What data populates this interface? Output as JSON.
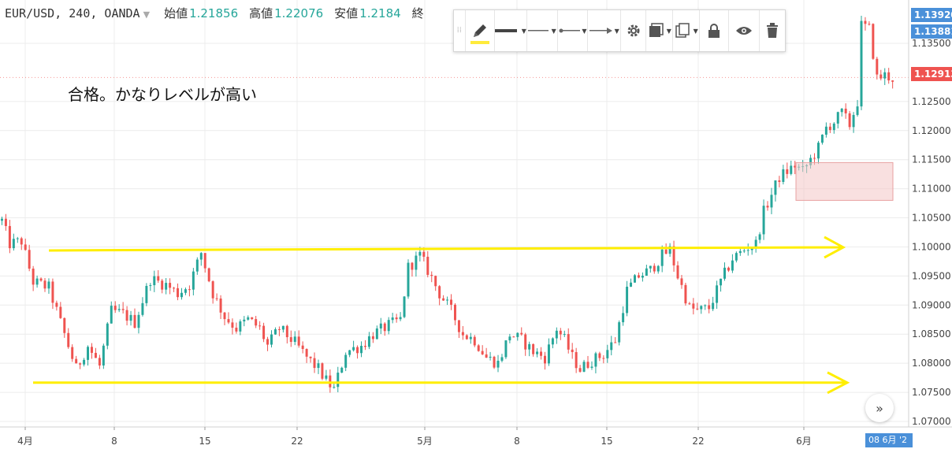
{
  "legend": {
    "symbol": "EUR/USD, 240, OANDA",
    "open_label": "始値",
    "open_value": "1.21856",
    "high_label": "高値",
    "high_value": "1.22076",
    "low_label": "安値",
    "low_value": "1.2184",
    "close_label": "終"
  },
  "annotation": "合格。かなりレベルが高い",
  "toolbar": {
    "items": [
      "drag-handle",
      "pencil-icon",
      "line-thickness-icon",
      "line-style-icon",
      "line-end-icon",
      "arrow-end-icon",
      "gear-icon",
      "fill-icon",
      "clone-icon",
      "lock-icon",
      "eye-icon",
      "trash-icon"
    ],
    "accent_color": "#ffeb3b"
  },
  "price_tags": {
    "top": "1.13920",
    "second": "1.13881",
    "current": "1.12913"
  },
  "time_tag": "08 6月 '2",
  "colors": {
    "up": "#26a69a",
    "down": "#ef5350",
    "hline": "#ffee00",
    "zone": "#f4c7c7",
    "current_tag": "#ef5350",
    "blue_tag": "#4a90d9"
  },
  "chart_data": {
    "type": "candlestick",
    "symbol": "EUR/USD",
    "timeframe": "240",
    "y_ticks": [
      "1.13500",
      "1.12500",
      "1.12000",
      "1.11500",
      "1.11000",
      "1.10500",
      "1.10000",
      "1.09500",
      "1.09000",
      "1.08500",
      "1.08000",
      "1.07500",
      "1.07000"
    ],
    "x_ticks": [
      "4月",
      "8",
      "15",
      "22",
      "5月",
      "8",
      "15",
      "22",
      "6月"
    ],
    "ylim": [
      1.069,
      1.1395
    ],
    "path": [
      [
        0,
        1.1045
      ],
      [
        2,
        1.1005
      ],
      [
        5,
        1.101
      ],
      [
        8,
        1.094
      ],
      [
        12,
        1.093
      ],
      [
        16,
        1.085
      ],
      [
        19,
        1.079
      ],
      [
        22,
        1.083
      ],
      [
        25,
        1.0795
      ],
      [
        28,
        1.089
      ],
      [
        31,
        1.0885
      ],
      [
        34,
        1.087
      ],
      [
        38,
        1.0945
      ],
      [
        42,
        1.0935
      ],
      [
        45,
        1.092
      ],
      [
        48,
        1.0935
      ],
      [
        51,
        1.099
      ],
      [
        54,
        1.092
      ],
      [
        57,
        1.088
      ],
      [
        60,
        1.086
      ],
      [
        63,
        1.0875
      ],
      [
        66,
        1.086
      ],
      [
        68,
        1.083
      ],
      [
        71,
        1.086
      ],
      [
        75,
        1.0835
      ],
      [
        78,
        1.081
      ],
      [
        81,
        1.079
      ],
      [
        83,
        1.077
      ],
      [
        85,
        1.0755
      ],
      [
        88,
        1.082
      ],
      [
        92,
        1.083
      ],
      [
        95,
        1.085
      ],
      [
        99,
        1.0865
      ],
      [
        102,
        1.0875
      ],
      [
        104,
        1.0965
      ],
      [
        107,
        1.0985
      ],
      [
        109,
        1.096
      ],
      [
        112,
        1.092
      ],
      [
        115,
        1.089
      ],
      [
        118,
        1.085
      ],
      [
        121,
        1.084
      ],
      [
        124,
        1.081
      ],
      [
        127,
        1.08
      ],
      [
        130,
        1.085
      ],
      [
        133,
        1.084
      ],
      [
        136,
        1.082
      ],
      [
        139,
        1.081
      ],
      [
        142,
        1.086
      ],
      [
        144,
        1.084
      ],
      [
        146,
        1.081
      ],
      [
        148,
        1.079
      ],
      [
        151,
        1.0805
      ],
      [
        154,
        1.0815
      ],
      [
        157,
        1.084
      ],
      [
        160,
        1.0925
      ],
      [
        163,
        1.095
      ],
      [
        166,
        1.096
      ],
      [
        169,
        1.0985
      ],
      [
        171,
        1.0995
      ],
      [
        173,
        1.095
      ],
      [
        176,
        1.0895
      ],
      [
        178,
        1.089
      ],
      [
        181,
        1.0895
      ],
      [
        184,
        1.094
      ],
      [
        187,
        1.098
      ],
      [
        189,
        1.099
      ],
      [
        191,
        1.1
      ],
      [
        193,
        1.1005
      ],
      [
        195,
        1.106
      ],
      [
        197,
        1.109
      ],
      [
        199,
        1.112
      ],
      [
        201,
        1.113
      ],
      [
        203,
        1.114
      ],
      [
        205,
        1.113
      ],
      [
        207,
        1.115
      ],
      [
        209,
        1.117
      ],
      [
        211,
        1.1205
      ],
      [
        213,
        1.1215
      ],
      [
        215,
        1.123
      ],
      [
        217,
        1.121
      ],
      [
        219,
        1.125
      ],
      [
        220,
        1.138
      ],
      [
        222,
        1.1375
      ],
      [
        224,
        1.129
      ],
      [
        226,
        1.1295
      ],
      [
        228,
        1.129
      ]
    ],
    "horizontal_lines": [
      {
        "price": 1.0998,
        "arrow": true
      },
      {
        "price": 1.0768,
        "arrow": true
      }
    ],
    "zone": {
      "from_bar": 197,
      "to_bar": 228,
      "top": 1.1145,
      "bottom": 1.108
    },
    "current_price": 1.12913
  }
}
